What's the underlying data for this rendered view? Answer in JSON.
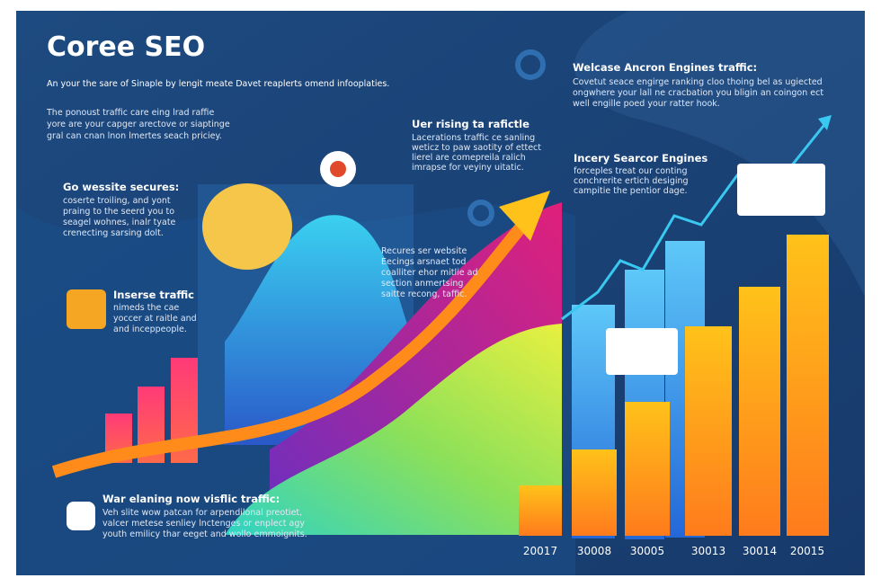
{
  "title": "Coree SEO",
  "subtitle": "An your the sare of Sinaple by lengit meate Davet reaplerts omend infooplaties.",
  "intro": [
    "The ponoust traffic care eing lrad raffie",
    "yore are your capger arectove or siaptinge",
    "gral can cnan lnon lmertes seach priciey."
  ],
  "top_right": {
    "heading": "Welcase Ancron Engines traffic:",
    "lines": [
      "Covetut seace engirge ranking cloo thoing bel as ugiected",
      "ongwhere your lall ne cracbation you bligin an coingon ect",
      "well engille poed your ratter hook."
    ]
  },
  "rising": {
    "heading": "Uer rising ta rafictle",
    "lines": [
      "Lacerations traffic ce sanling",
      "weticz to paw saotity of ettect",
      "lierel are comepreila ralich",
      "imrapse for veyiny uitatic."
    ]
  },
  "search": {
    "heading": "Incery Searcor Engines",
    "lines": [
      "forceples treat our conting",
      "conchrerite ertich desiging",
      "campitie the pentior dage."
    ]
  },
  "secures": {
    "heading": "Go wessite secures:",
    "lines": [
      "coserte troiling, and yont",
      "praing to the seerd you to",
      "seagel wohnes, inalr tyate",
      "crenecting sarsing dolt."
    ]
  },
  "traffic": {
    "heading": "Inserse traffic",
    "lines": [
      "nimeds the cae",
      "yoccer at raitle and",
      "and inceppeople."
    ]
  },
  "website": {
    "lines": [
      "Recures ser website",
      "Eecings arsnaet tod",
      "coalliter ehor mitlie ad",
      "section anmertsing",
      "saitte recong, taffic."
    ]
  },
  "bottom": {
    "heading": "War elaning now visflic traffic:",
    "lines": [
      "Veh slite wow patcan for arpendilonal preotiet,",
      "valcer metese senliey lnctenges or enplect agy",
      "youth emilicy thar eeget and wollo emmoignits."
    ]
  },
  "x_labels": [
    "20017",
    "30008",
    "30005",
    "30013",
    "30014",
    "20015"
  ]
}
